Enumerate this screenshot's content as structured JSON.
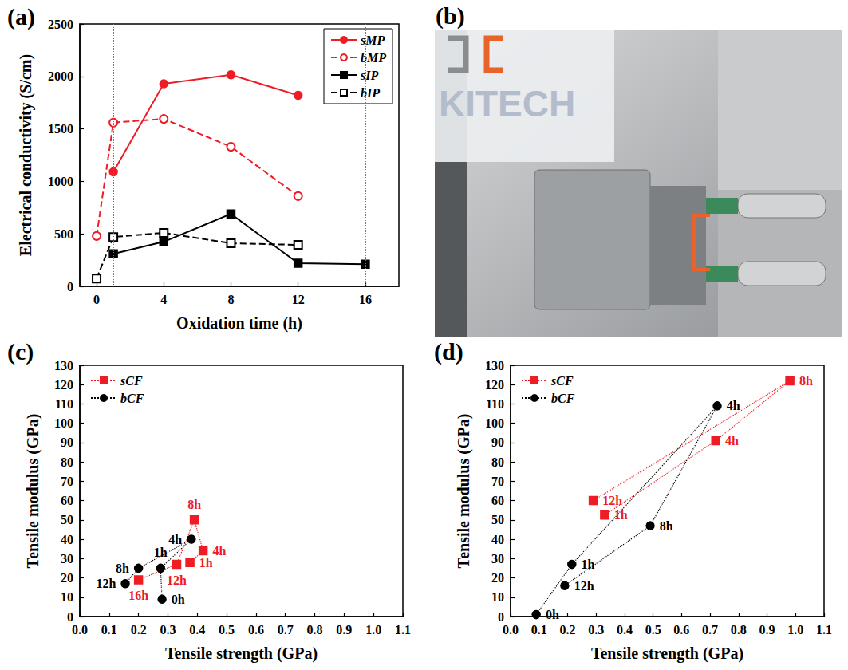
{
  "chart_data": [
    {
      "panel": "(a)",
      "type": "line",
      "xlabel": "Oxidation time (h)",
      "ylabel": "Electrical conductivity (S/cm)",
      "x": [
        0,
        1,
        4,
        8,
        12,
        16
      ],
      "xlim": [
        -1,
        18
      ],
      "xticks": [
        0,
        4,
        8,
        12,
        16
      ],
      "ylim": [
        0,
        2500
      ],
      "yticks": [
        0,
        500,
        1000,
        1500,
        2000,
        2500
      ],
      "grid": "x",
      "legend": "upper right",
      "series": [
        {
          "name": "sMP",
          "color": "#ee1c25",
          "marker": "circle",
          "line_style": "solid",
          "values": [
            null,
            1090,
            1930,
            2015,
            1820,
            null
          ]
        },
        {
          "name": "bMP",
          "color": "#ee1c25",
          "marker": "open_circle",
          "line_style": "dashed",
          "values": [
            480,
            1560,
            1595,
            1330,
            860,
            null
          ]
        },
        {
          "name": "sIP",
          "color": "#000000",
          "marker": "square",
          "line_style": "solid",
          "values": [
            null,
            310,
            425,
            690,
            220,
            210
          ]
        },
        {
          "name": "bIP",
          "color": "#000000",
          "marker": "open_square",
          "line_style": "dashed",
          "values": [
            75,
            470,
            510,
            410,
            395,
            null
          ]
        }
      ]
    },
    {
      "panel": "(c)",
      "type": "scatter",
      "xlabel": "Tensile strength (GPa)",
      "ylabel": "Tensile modulus (GPa)",
      "xlim": [
        0,
        1.1
      ],
      "xticks": [
        {
          "value": 0,
          "label": "0.0"
        },
        0.1,
        0.2,
        0.3,
        0.4,
        0.5,
        0.6,
        0.7,
        0.8,
        0.9,
        {
          "value": 1,
          "label": "1.0"
        },
        1.1
      ],
      "ylim": [
        0,
        130
      ],
      "yticks": [
        0,
        10,
        20,
        30,
        40,
        50,
        60,
        70,
        80,
        90,
        100,
        110,
        120,
        130
      ],
      "legend": "upper left",
      "series": [
        {
          "name": "sCF",
          "color": "#ee1c25",
          "marker": "square",
          "line_style": "dotted",
          "x": [
            0.375,
            0.42,
            0.39,
            0.33,
            0.2
          ],
          "values": [
            28,
            34,
            50,
            27,
            19
          ],
          "labels": [
            "1h",
            "4h",
            "8h",
            "12h",
            "16h"
          ]
        },
        {
          "name": "bCF",
          "color": "#000000",
          "marker": "circle",
          "line_style": "dotted",
          "x": [
            0.28,
            0.275,
            0.38,
            0.2,
            0.155
          ],
          "values": [
            9,
            25,
            40,
            25,
            17
          ],
          "labels": [
            "0h",
            "1h",
            "4h",
            "8h",
            "12h"
          ]
        }
      ]
    },
    {
      "panel": "(d)",
      "type": "scatter",
      "xlabel": "Tensile strength (GPa)",
      "ylabel": "Tensile modulus (GPa)",
      "xlim": [
        0,
        1.1
      ],
      "xticks": [
        {
          "value": 0,
          "label": "0.0"
        },
        0.1,
        0.2,
        0.3,
        0.4,
        0.5,
        0.6,
        0.7,
        0.8,
        0.9,
        {
          "value": 1,
          "label": "1.0"
        },
        1.1
      ],
      "ylim": [
        0,
        130
      ],
      "yticks": [
        0,
        10,
        20,
        30,
        40,
        50,
        60,
        70,
        80,
        90,
        100,
        110,
        120,
        130
      ],
      "legend": "upper left",
      "series": [
        {
          "name": "sCF",
          "color": "#ee1c25",
          "marker": "square",
          "line_style": "dotted",
          "x": [
            0.33,
            0.72,
            0.98,
            0.29
          ],
          "values": [
            52.5,
            91,
            122,
            60
          ],
          "labels": [
            "1h",
            "4h",
            "8h",
            "12h"
          ]
        },
        {
          "name": "bCF",
          "color": "#000000",
          "marker": "circle",
          "line_style": "dotted",
          "x": [
            0.09,
            0.215,
            0.725,
            0.49,
            0.19
          ],
          "values": [
            1,
            27,
            109,
            47,
            16
          ],
          "labels": [
            "0h",
            "1h",
            "4h",
            "8h",
            "12h"
          ]
        }
      ]
    }
  ],
  "photo": {
    "panel": "(b)",
    "watermark": "KITECH"
  }
}
